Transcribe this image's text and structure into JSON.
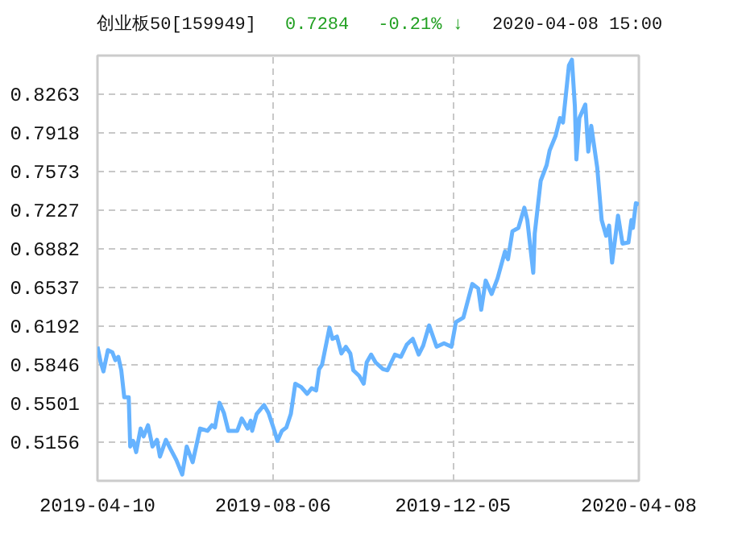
{
  "chart_data": {
    "type": "line",
    "title": "创业板50[159949]",
    "annotations": [
      "0.7284",
      "-0.21% ↓",
      "2020-04-08 15:00"
    ],
    "x": [
      "2019-04-10",
      "2019-04-12",
      "2019-04-14",
      "2019-04-17",
      "2019-04-20",
      "2019-04-22",
      "2019-04-24",
      "2019-04-26",
      "2019-04-28",
      "2019-05-01",
      "2019-05-02",
      "2019-05-04",
      "2019-05-06",
      "2019-05-09",
      "2019-05-11",
      "2019-05-14",
      "2019-05-17",
      "2019-05-20",
      "2019-05-22",
      "2019-05-26",
      "2019-05-29",
      "2019-06-02",
      "2019-06-06",
      "2019-06-09",
      "2019-06-13",
      "2019-06-18",
      "2019-06-23",
      "2019-06-26",
      "2019-06-28",
      "2019-07-01",
      "2019-07-04",
      "2019-07-07",
      "2019-07-13",
      "2019-07-16",
      "2019-07-20",
      "2019-07-22",
      "2019-07-23",
      "2019-07-26",
      "2019-07-31",
      "2019-08-03",
      "2019-08-07",
      "2019-08-09",
      "2019-08-12",
      "2019-08-15",
      "2019-08-18",
      "2019-08-21",
      "2019-08-25",
      "2019-08-29",
      "2019-09-01",
      "2019-09-04",
      "2019-09-06",
      "2019-09-08",
      "2019-09-13",
      "2019-09-15",
      "2019-09-18",
      "2019-09-21",
      "2019-09-24",
      "2019-09-27",
      "2019-09-29",
      "2019-10-03",
      "2019-10-06",
      "2019-10-08",
      "2019-10-11",
      "2019-10-14",
      "2019-10-19",
      "2019-10-22",
      "2019-10-27",
      "2019-10-31",
      "2019-11-04",
      "2019-11-08",
      "2019-11-12",
      "2019-11-15",
      "2019-11-19",
      "2019-11-24",
      "2019-11-29",
      "2019-12-04",
      "2019-12-07",
      "2019-12-12",
      "2019-12-18",
      "2019-12-22",
      "2019-12-24",
      "2019-12-27",
      "2019-12-31",
      "2020-01-04",
      "2020-01-09",
      "2020-01-11",
      "2020-01-14",
      "2020-01-18",
      "2020-01-22",
      "2020-01-24",
      "2020-01-28",
      "2020-01-29",
      "2020-02-02",
      "2020-02-06",
      "2020-02-08",
      "2020-02-12",
      "2020-02-15",
      "2020-02-17",
      "2020-02-21",
      "2020-02-23",
      "2020-02-25",
      "2020-02-26",
      "2020-02-28",
      "2020-03-03",
      "2020-03-05",
      "2020-03-07",
      "2020-03-11",
      "2020-03-14",
      "2020-03-17",
      "2020-03-19",
      "2020-03-21",
      "2020-03-25",
      "2020-03-28",
      "2020-04-01",
      "2020-04-03",
      "2020-04-04",
      "2020-04-06",
      "2020-04-08"
    ],
    "series": [
      {
        "color": "#66b3ff",
        "values": [
          0.601,
          0.588,
          0.579,
          0.598,
          0.596,
          0.589,
          0.592,
          0.58,
          0.556,
          0.556,
          0.512,
          0.517,
          0.507,
          0.528,
          0.521,
          0.531,
          0.512,
          0.518,
          0.503,
          0.518,
          0.51,
          0.5,
          0.487,
          0.512,
          0.498,
          0.528,
          0.526,
          0.531,
          0.529,
          0.551,
          0.542,
          0.526,
          0.526,
          0.537,
          0.528,
          0.535,
          0.526,
          0.541,
          0.549,
          0.542,
          0.526,
          0.517,
          0.526,
          0.529,
          0.541,
          0.568,
          0.565,
          0.559,
          0.564,
          0.562,
          0.581,
          0.585,
          0.618,
          0.608,
          0.61,
          0.595,
          0.601,
          0.595,
          0.58,
          0.575,
          0.568,
          0.587,
          0.594,
          0.587,
          0.581,
          0.58,
          0.594,
          0.592,
          0.603,
          0.608,
          0.594,
          0.602,
          0.62,
          0.601,
          0.604,
          0.601,
          0.623,
          0.627,
          0.657,
          0.653,
          0.634,
          0.66,
          0.648,
          0.662,
          0.686,
          0.679,
          0.704,
          0.707,
          0.725,
          0.714,
          0.667,
          0.702,
          0.749,
          0.763,
          0.776,
          0.789,
          0.805,
          0.801,
          0.852,
          0.857,
          0.815,
          0.768,
          0.805,
          0.817,
          0.775,
          0.798,
          0.761,
          0.714,
          0.7,
          0.709,
          0.676,
          0.718,
          0.693,
          0.694,
          0.714,
          0.707,
          0.729,
          0.728
        ]
      }
    ],
    "xlim": [
      "2019-04-10",
      "2020-04-08"
    ],
    "xticks": [
      "2019-04-10",
      "2019-08-06",
      "2019-12-05",
      "2020-04-08"
    ],
    "ylim": [
      0.4814,
      0.8607
    ],
    "yticks": [
      0.5156,
      0.5501,
      0.5846,
      0.6192,
      0.6537,
      0.6882,
      0.7227,
      0.7573,
      0.7918,
      0.8263
    ],
    "grid": true,
    "marker": "none",
    "line_style": "solid"
  }
}
